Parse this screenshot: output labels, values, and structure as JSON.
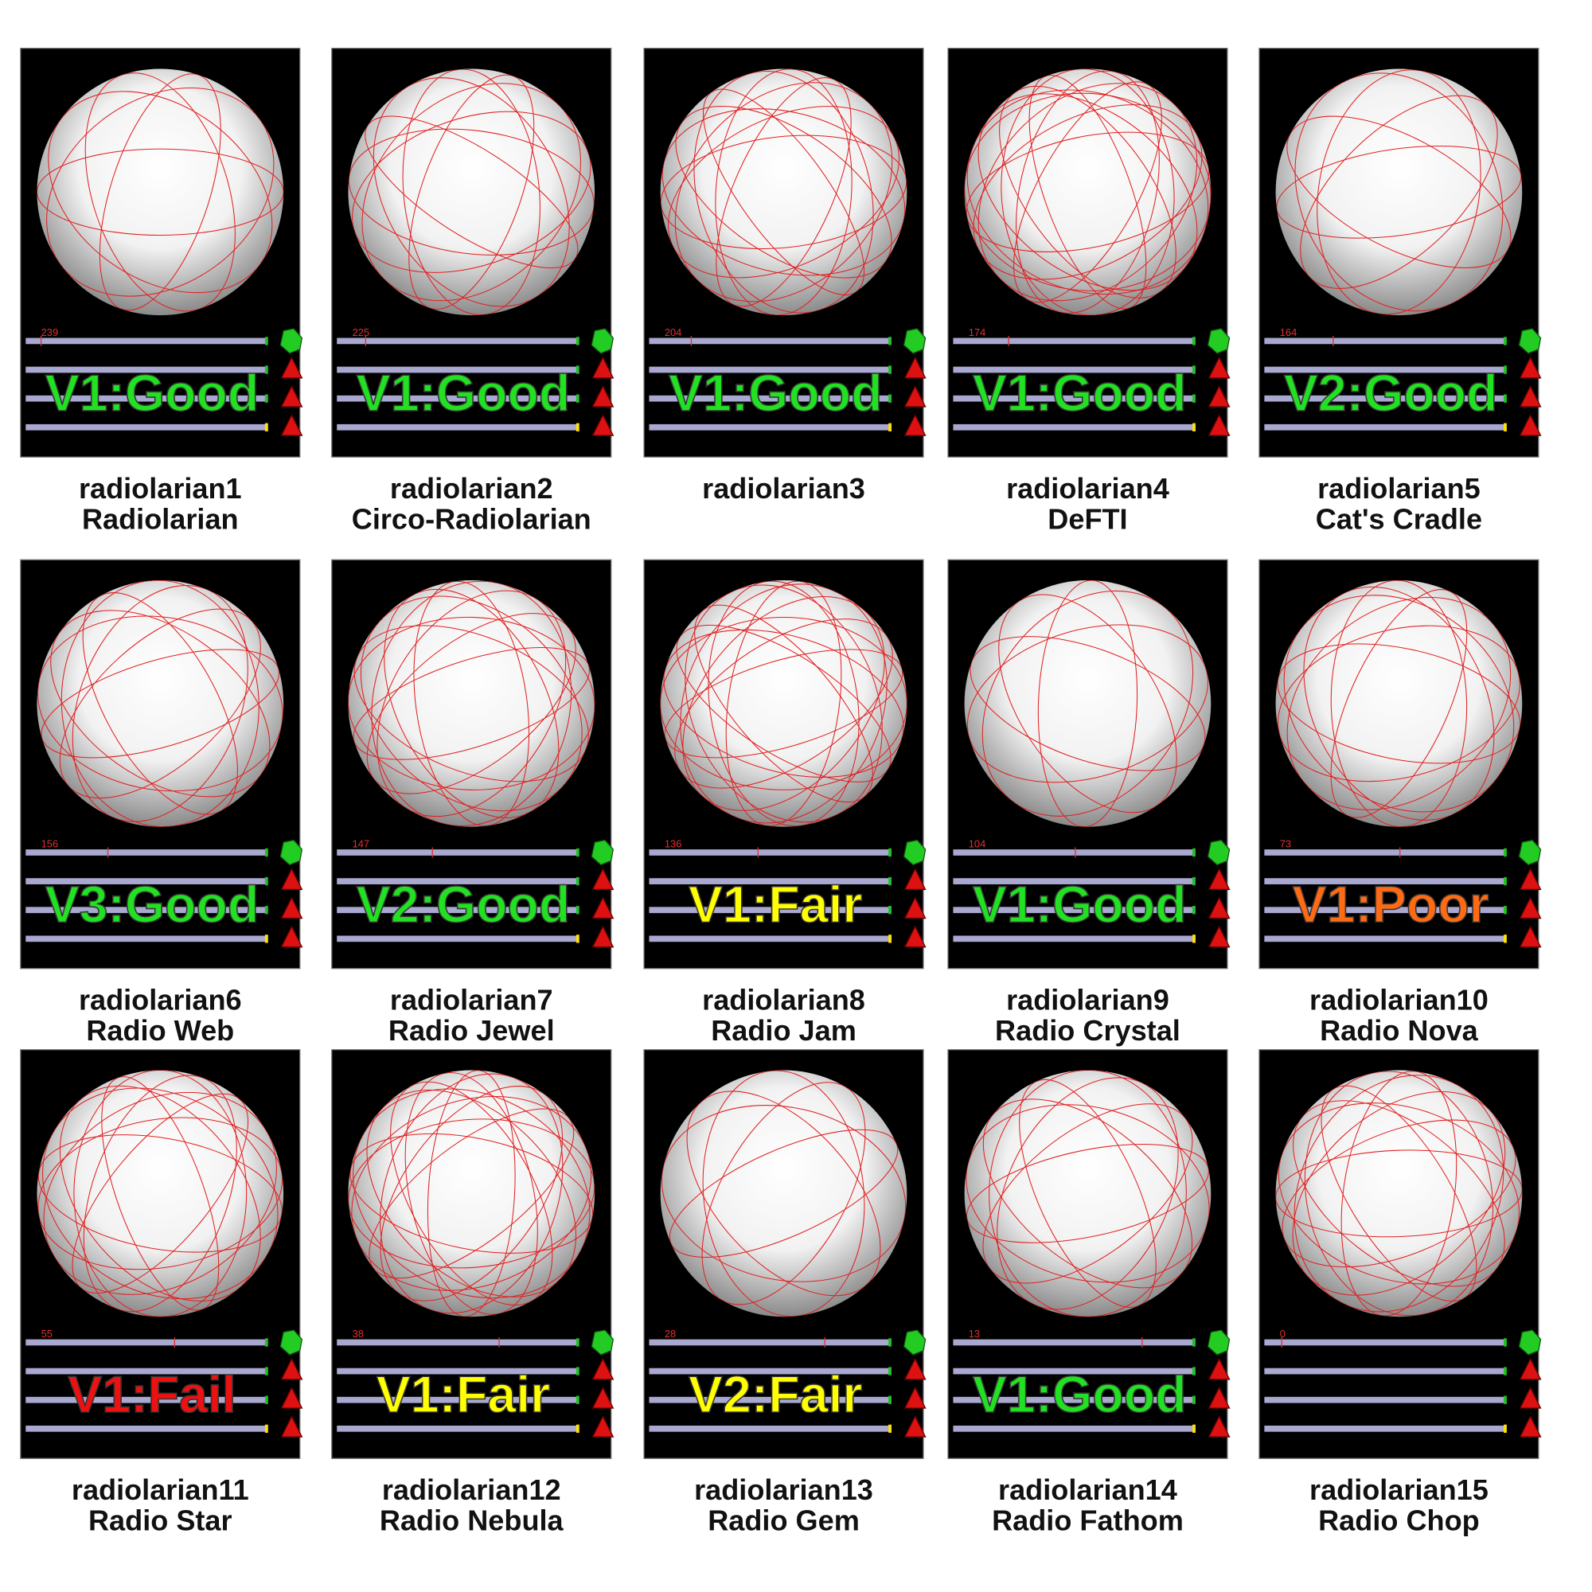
{
  "panels": [
    {
      "id": "radiolarian1",
      "name": "Radiolarian",
      "status": "V1:Good",
      "status_color": "#22e022",
      "count": 239
    },
    {
      "id": "radiolarian2",
      "name": "Circo-Radiolarian",
      "status": "V1:Good",
      "status_color": "#22e022",
      "count": 225
    },
    {
      "id": "radiolarian3",
      "status": "V1:Good",
      "status_color": "#22e022",
      "count": 204
    },
    {
      "id": "radiolarian4",
      "name": "DeFTI",
      "status": "V1:Good",
      "status_color": "#22e022",
      "count": 174
    },
    {
      "id": "radiolarian5",
      "name": "Cat's Cradle",
      "status": "V2:Good",
      "status_color": "#22e022",
      "count": 164
    },
    {
      "id": "radiolarian6",
      "name": "Radio Web",
      "status": "V3:Good",
      "status_color": "#22e022",
      "count": 156
    },
    {
      "id": "radiolarian7",
      "name": "Radio Jewel",
      "status": "V2:Good",
      "status_color": "#22e022",
      "count": 147
    },
    {
      "id": "radiolarian8",
      "name": "Radio Jam",
      "status": "V1:Fair",
      "status_color": "#ffff00",
      "count": 136
    },
    {
      "id": "radiolarian9",
      "name": "Radio Crystal",
      "status": "V1:Good",
      "status_color": "#22e022",
      "count": 104
    },
    {
      "id": "radiolarian10",
      "name": "Radio Nova",
      "status": "V1:Poor",
      "status_color": "#ff6a14",
      "count": 73
    },
    {
      "id": "radiolarian11",
      "name": "Radio Star",
      "status": "V1:Fail",
      "status_color": "#ee1111",
      "count": 55
    },
    {
      "id": "radiolarian12",
      "name": "Radio Nebula",
      "status": "V1:Fair",
      "status_color": "#ffff00",
      "count": 38
    },
    {
      "id": "radiolarian13",
      "name": "Radio Gem",
      "status": "V2:Fair",
      "status_color": "#ffff00",
      "count": 28
    },
    {
      "id": "radiolarian14",
      "name": "Radio Fathom",
      "status": "V1:Good",
      "status_color": "#22e022",
      "count": 13
    },
    {
      "id": "radiolarian15",
      "name": "Radio Chop",
      "count": 0
    }
  ]
}
